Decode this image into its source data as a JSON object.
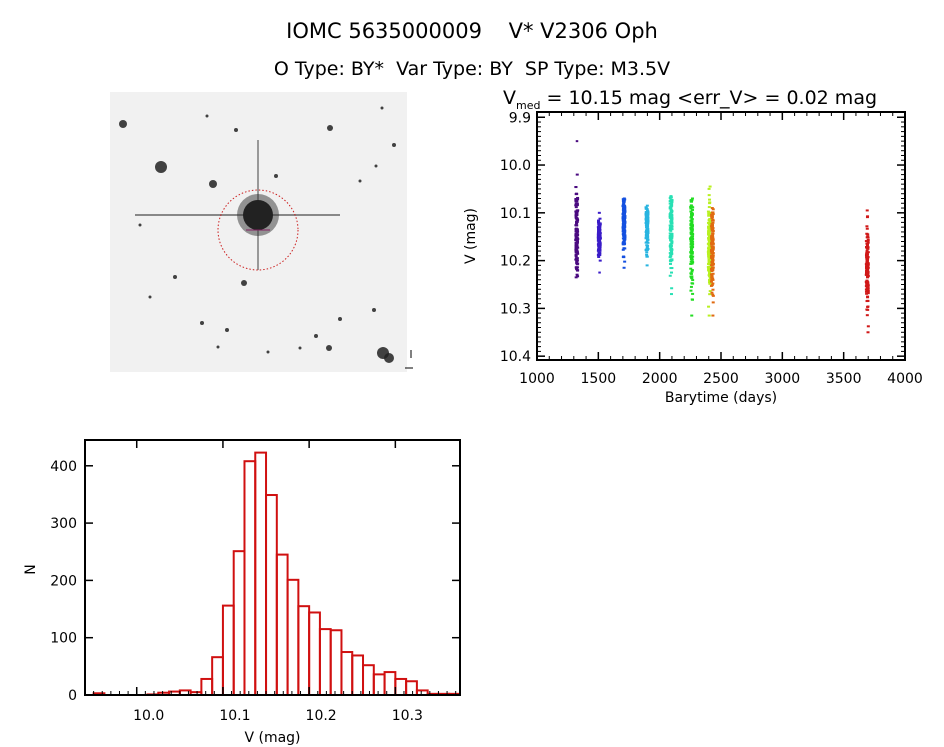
{
  "header": {
    "title": "IOMC 5635000009    V* V2306 Oph",
    "subtitle": "O Type: BY*  Var Type: BY  SP Type: M3.5V"
  },
  "chart_data": [
    {
      "type": "scatter",
      "name": "light-curve",
      "title_prefix": "V",
      "title_sub": "med",
      "title_rest": " = 10.15 mag <err_V> = 0.02 mag",
      "xlabel": "Barytime (days)",
      "ylabel": "V (mag)",
      "xlim": [
        1000,
        4000
      ],
      "ylim": [
        9.889,
        10.408
      ],
      "y_inverted": true,
      "xticks": [
        "1000",
        "1500",
        "2000",
        "2500",
        "3000",
        "3500",
        "4000"
      ],
      "yticks": [
        "9.9",
        "10.0",
        "10.1",
        "10.2",
        "10.3",
        "10.4"
      ],
      "clusters": [
        {
          "x": 1324,
          "ymin": 10.02,
          "ymax": 10.235,
          "center": 10.14,
          "outliers": [
            9.95
          ],
          "color": "#4a0a80"
        },
        {
          "x": 1508,
          "ymin": 10.1,
          "ymax": 10.2,
          "center": 10.15,
          "outliers": [
            10.225
          ],
          "color": "#3a1cc8"
        },
        {
          "x": 1709,
          "ymin": 10.07,
          "ymax": 10.215,
          "center": 10.12,
          "outliers": [],
          "color": "#1450e0"
        },
        {
          "x": 1897,
          "ymin": 10.085,
          "ymax": 10.21,
          "center": 10.13,
          "outliers": [],
          "color": "#28b4e0"
        },
        {
          "x": 2093,
          "ymin": 10.065,
          "ymax": 10.27,
          "center": 10.13,
          "outliers": [],
          "color": "#28e0b4"
        },
        {
          "x": 2261,
          "ymin": 10.07,
          "ymax": 10.315,
          "center": 10.16,
          "outliers": [],
          "color": "#22dd22"
        },
        {
          "x": 2405,
          "ymin": 10.045,
          "ymax": 10.315,
          "center": 10.17,
          "outliers": [],
          "color": "#b8f020"
        },
        {
          "x": 2430,
          "ymin": 10.09,
          "ymax": 10.315,
          "center": 10.17,
          "outliers": [],
          "color": "#e06a10"
        },
        {
          "x": 3693,
          "ymin": 10.095,
          "ymax": 10.35,
          "center": 10.22,
          "outliers": [],
          "color": "#d01818"
        }
      ]
    },
    {
      "type": "bar",
      "name": "histogram",
      "xlabel": "V (mag)",
      "ylabel": "N",
      "xlim": [
        9.94,
        10.375
      ],
      "ylim": [
        0,
        445
      ],
      "bin_start": 9.95,
      "bin_width": 0.0125,
      "values": [
        3,
        0,
        0,
        0,
        0,
        1,
        4,
        6,
        8,
        5,
        28,
        66,
        156,
        251,
        408,
        423,
        349,
        245,
        201,
        155,
        144,
        115,
        113,
        75,
        69,
        52,
        36,
        40,
        28,
        24,
        8,
        2,
        2,
        2
      ],
      "xticks": [
        "10.0",
        "10.1",
        "10.2",
        "10.3"
      ],
      "yticks": [
        "0",
        "100",
        "200",
        "300",
        "400"
      ],
      "color": "#d01010"
    }
  ]
}
